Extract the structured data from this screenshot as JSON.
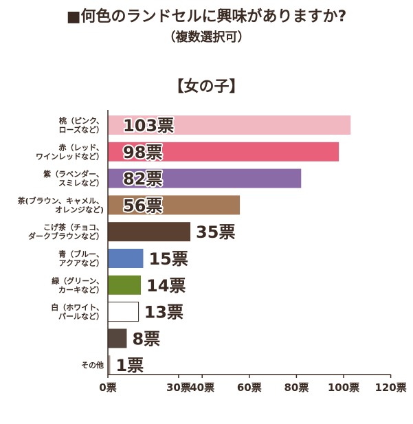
{
  "title": "■何色のランドセルに興味がありますか?",
  "subtitle": "（複数選択可）",
  "group_label": "【女の子】",
  "colors": {
    "text": "#3a2a22",
    "axis": "#3a2a22",
    "accent": "#5a4030"
  },
  "chart_data": {
    "type": "bar",
    "orientation": "horizontal",
    "categories": [
      [
        "桃（ピンク、",
        "ローズなど）"
      ],
      [
        "赤（レッド、",
        "ワインレッドなど）"
      ],
      [
        "紫（ラベンダー、",
        "スミレなど）"
      ],
      [
        "茶(ブラウン、キャメル、",
        "オレンジなど)"
      ],
      [
        "こげ茶（チョコ、",
        "ダークブラウンなど）"
      ],
      [
        "青（ブルー、",
        "アクアなど）"
      ],
      [
        "緑（グリーン、",
        "カーキなど）"
      ],
      [
        "白（ホワイト、",
        "パールなど）"
      ],
      [],
      [
        "その他"
      ]
    ],
    "values": [
      103,
      98,
      82,
      56,
      35,
      15,
      14,
      13,
      8,
      1
    ],
    "value_labels": [
      "103票",
      "98票",
      "82票",
      "56票",
      "35票",
      "15票",
      "14票",
      "13票",
      "8票",
      "1票"
    ],
    "bar_colors": [
      "#f2b8c2",
      "#e8607a",
      "#8b6aa8",
      "#a57a58",
      "#5a4030",
      "#5b7dbb",
      "#6b8a2a",
      "#ffffff",
      "#55463e",
      "#a89a92"
    ],
    "xlim": [
      0,
      120
    ],
    "xticks": [
      0,
      30,
      40,
      60,
      80,
      100,
      120
    ],
    "xtick_labels": [
      "0票",
      "30票",
      "40票",
      "60票",
      "80票",
      "100票",
      "120票"
    ],
    "legend": null,
    "grid": false
  }
}
